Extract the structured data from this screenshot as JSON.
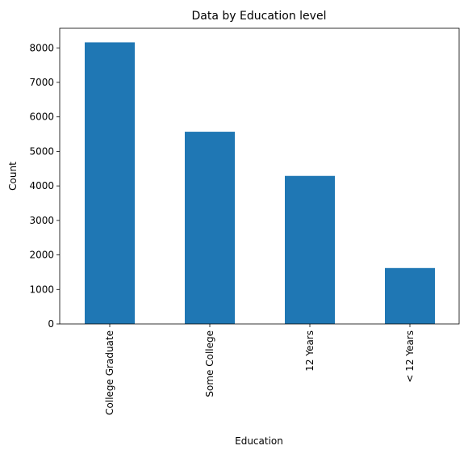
{
  "chart_data": {
    "type": "bar",
    "title": "Data by Education level",
    "xlabel": "Education",
    "ylabel": "Count",
    "categories": [
      "College Graduate",
      "Some College",
      "12 Years",
      "< 12 Years"
    ],
    "values": [
      8160,
      5570,
      4290,
      1620
    ],
    "ylim": [
      0,
      8568
    ],
    "yticks": [
      "0",
      "1000",
      "2000",
      "3000",
      "4000",
      "5000",
      "6000",
      "7000",
      "8000"
    ],
    "bar_color": "#1f77b4",
    "grid": false,
    "legend": "none"
  }
}
